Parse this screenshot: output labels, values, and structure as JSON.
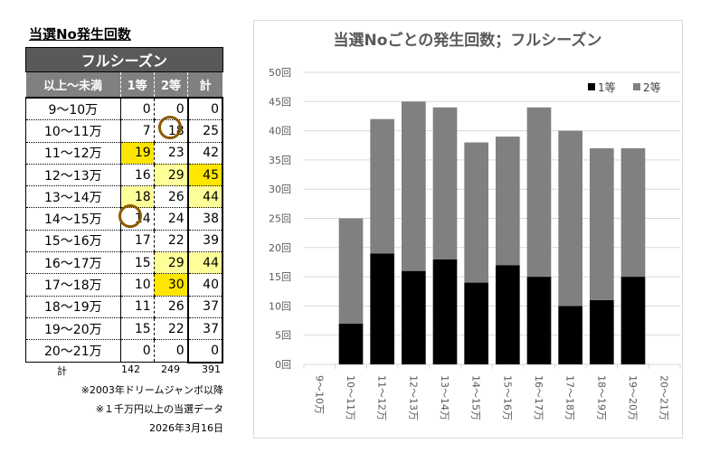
{
  "table": {
    "title": "当選No発生回数",
    "header": "フルシーズン",
    "columns": [
      "以上～未満",
      "1等",
      "2等",
      "計"
    ],
    "rows": [
      {
        "range": "9～10万",
        "first": 0,
        "second": 0,
        "total": 0
      },
      {
        "range": "10～11万",
        "first": 7,
        "second": 18,
        "total": 25
      },
      {
        "range": "11～12万",
        "first": 19,
        "second": 23,
        "total": 42
      },
      {
        "range": "12～13万",
        "first": 16,
        "second": 29,
        "total": 45
      },
      {
        "range": "13～14万",
        "first": 18,
        "second": 26,
        "total": 44
      },
      {
        "range": "14～15万",
        "first": 14,
        "second": 24,
        "total": 38
      },
      {
        "range": "15～16万",
        "first": 17,
        "second": 22,
        "total": 39
      },
      {
        "range": "16～17万",
        "first": 15,
        "second": 29,
        "total": 44
      },
      {
        "range": "17～18万",
        "first": 10,
        "second": 30,
        "total": 40
      },
      {
        "range": "18～19万",
        "first": 11,
        "second": 26,
        "total": 37
      },
      {
        "range": "19～20万",
        "first": 15,
        "second": 22,
        "total": 37
      },
      {
        "range": "20～21万",
        "first": 0,
        "second": 0,
        "total": 0
      }
    ],
    "highlights": {
      "strong": "#ffe600",
      "light": "#ffff99"
    },
    "footer": {
      "label": "計",
      "first": 142,
      "second": 249,
      "total": 391
    },
    "notes": [
      "※2003年ドリームジャンボ以降",
      "※１千万円以上の当選データ",
      "2026年3月16日"
    ]
  },
  "chart_data": {
    "type": "bar",
    "stacked": true,
    "title": "当選Noごとの発生回数；フルシーズン",
    "categories": [
      "9～10万",
      "10～11万",
      "11～12万",
      "12～13万",
      "13～14万",
      "14～15万",
      "15～16万",
      "16～17万",
      "17～18万",
      "18～19万",
      "19～20万",
      "20～21万"
    ],
    "series": [
      {
        "name": "1等",
        "color": "#000000",
        "values": [
          0,
          7,
          19,
          16,
          18,
          14,
          17,
          15,
          10,
          11,
          15,
          0
        ]
      },
      {
        "name": "2等",
        "color": "#808080",
        "values": [
          0,
          18,
          23,
          29,
          26,
          24,
          22,
          29,
          30,
          26,
          22,
          0
        ]
      }
    ],
    "ylim": [
      0,
      50
    ],
    "yticks": [
      "0回",
      "5回",
      "10回",
      "15回",
      "20回",
      "25回",
      "30回",
      "35回",
      "40回",
      "45回",
      "50回"
    ],
    "grid": true,
    "legend": "top-right"
  }
}
